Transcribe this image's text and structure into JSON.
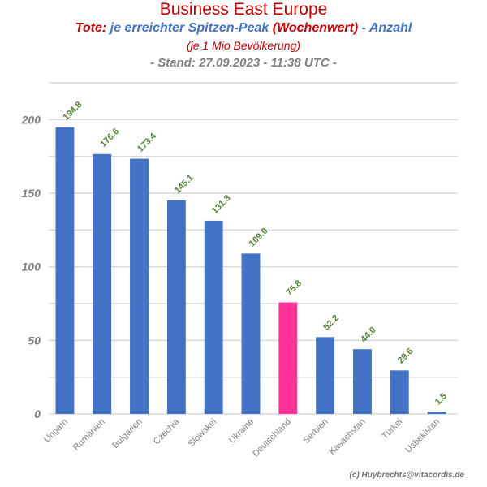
{
  "header": {
    "title": "Business East Europe",
    "subtitle_parts": [
      {
        "text": "Tote: ",
        "color": "#c00000"
      },
      {
        "text": "je erreichter Spitzen-Peak ",
        "color": "#4472c4"
      },
      {
        "text": " (Wochenwert) ",
        "color": "#c00000"
      },
      {
        "text": " - Anzahl",
        "color": "#4472c4"
      }
    ],
    "subtitle2": "(je 1 Mio Bevölkerung)",
    "stand": "- Stand: 27.09.2023 - 11:38 UTC -"
  },
  "footer": {
    "credit": "(c) Huybrechts@vitacordis.de"
  },
  "chart_data": {
    "type": "bar",
    "categories": [
      "Ungarn",
      "Rumänien",
      "Bulgarien",
      "Czechia",
      "Slowakei",
      "Ukraine",
      "Deutschland",
      "Serbien",
      "Kasachstan",
      "Türkei",
      "Usbekistan"
    ],
    "values": [
      194.8,
      176.6,
      173.4,
      145.1,
      131.3,
      109.0,
      75.8,
      52.2,
      44.0,
      29.6,
      1.5
    ],
    "data_labels": [
      "194.8",
      "176.6",
      "173.4",
      "145.1",
      "131.3",
      "109.0",
      "75.8",
      "52.2",
      "44.0",
      "29.6",
      "1.5"
    ],
    "colors": [
      "#4472c4",
      "#4472c4",
      "#4472c4",
      "#4472c4",
      "#4472c4",
      "#4472c4",
      "#ff3399",
      "#4472c4",
      "#4472c4",
      "#4472c4",
      "#4472c4"
    ],
    "label_color": "#548235",
    "ylim": [
      0,
      225
    ],
    "yticks": [
      0,
      50,
      100,
      150,
      200
    ],
    "minor_gridlines": [
      25,
      75,
      125,
      175,
      225
    ],
    "grid": true,
    "title": "",
    "xlabel": "",
    "ylabel": ""
  }
}
